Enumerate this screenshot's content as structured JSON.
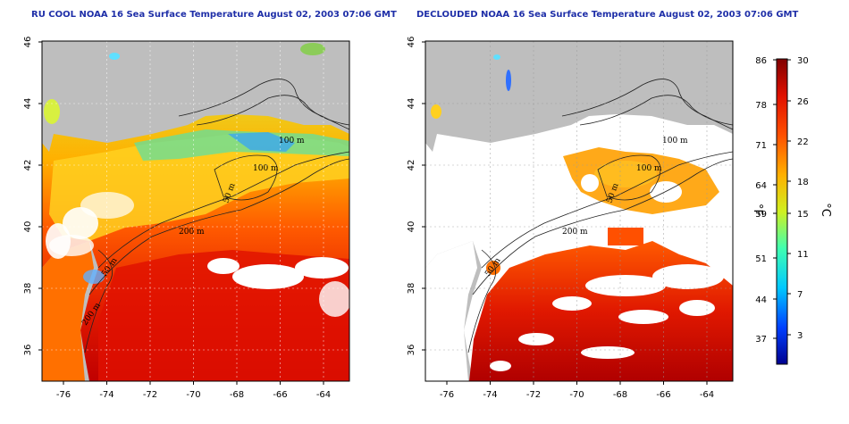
{
  "titles": {
    "left": "RU COOL NOAA 16 Sea Surface Temperature August 02, 2003 07:06 GMT",
    "right": "DECLOUDED NOAA 16 Sea Surface Temperature August 02, 2003 07:06 GMT"
  },
  "axes": {
    "lon_ticks": [
      "-76",
      "-74",
      "-72",
      "-70",
      "-68",
      "-66",
      "-64"
    ],
    "lat_ticks": [
      "46",
      "44",
      "42",
      "40",
      "38",
      "36"
    ]
  },
  "contour_labels": {
    "left": [
      "100 m",
      "100 m",
      "50 m",
      "200 m",
      "50 m",
      "200 m"
    ],
    "right": [
      "100 m",
      "100 m",
      "50 m",
      "200 m",
      "50 m"
    ]
  },
  "colorbar": {
    "fahrenheit_labels": [
      "86",
      "78",
      "71",
      "64",
      "59",
      "51",
      "44",
      "37"
    ],
    "celsius_labels": [
      "30",
      "26",
      "22",
      "18",
      "15",
      "11",
      "7",
      "3"
    ],
    "unit_left": "°F",
    "unit_right": "°C"
  },
  "colors": {
    "land": "#bebebe",
    "cloud": "#ffffff",
    "title_blue": "#1f2fa8"
  }
}
